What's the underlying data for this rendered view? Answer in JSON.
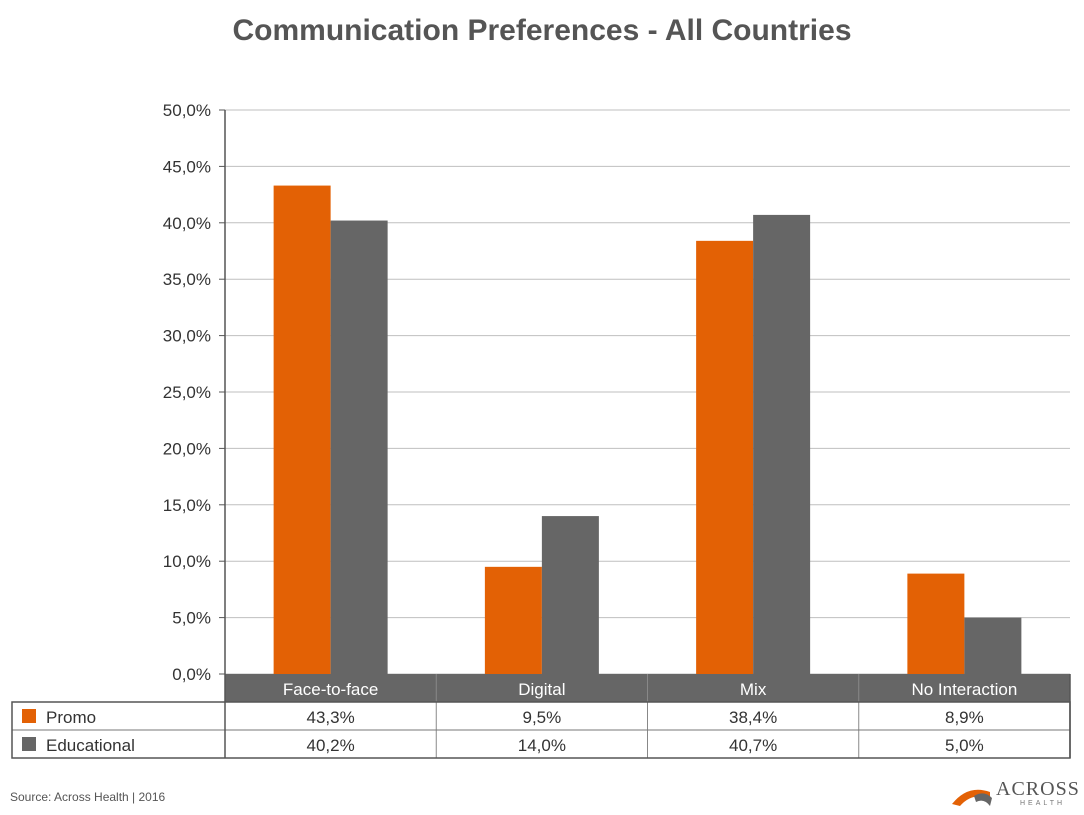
{
  "chart_data": {
    "type": "bar",
    "title": "Communication Preferences - All Countries",
    "categories": [
      "Face-to-face",
      "Digital",
      "Mix",
      "No Interaction"
    ],
    "series": [
      {
        "name": "Promo",
        "values": [
          43.3,
          9.5,
          38.4,
          8.9
        ],
        "labels": [
          "43,3%",
          "9,5%",
          "38,4%",
          "8,9%"
        ],
        "color": "#E36105"
      },
      {
        "name": "Educational",
        "values": [
          40.2,
          14.0,
          40.7,
          5.0
        ],
        "labels": [
          "40,2%",
          "14,0%",
          "40,7%",
          "5,0%"
        ],
        "color": "#666666"
      }
    ],
    "ylim": [
      0,
      50
    ],
    "yticks": [
      "0,0%",
      "5,0%",
      "10,0%",
      "15,0%",
      "20,0%",
      "25,0%",
      "30,0%",
      "35,0%",
      "40,0%",
      "45,0%",
      "50,0%"
    ],
    "grid": true,
    "legend": "data-table-left"
  },
  "footer": {
    "source": "Source: Across Health  |  2016",
    "logo_name": "ACROSS",
    "logo_sub": "HEALTH"
  },
  "colors": {
    "accent": "#E36105",
    "secondary": "#666666",
    "grid": "#BFBFBF"
  }
}
